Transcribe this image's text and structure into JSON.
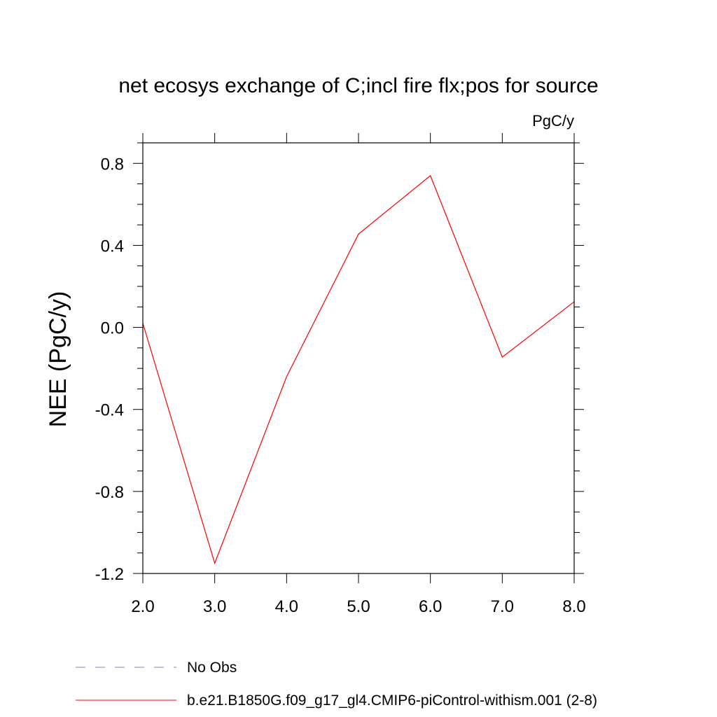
{
  "chart_data": {
    "type": "line",
    "title": "net ecosys exchange of C;incl fire flx;pos for source",
    "units_label": "PgC/y",
    "xlabel": "",
    "ylabel": "NEE  (PgC/y)",
    "xlim": [
      2.0,
      8.0
    ],
    "ylim": [
      -1.2,
      0.9
    ],
    "x_ticks": [
      "2.0",
      "3.0",
      "4.0",
      "5.0",
      "6.0",
      "7.0",
      "8.0"
    ],
    "y_ticks": [
      "0.8",
      "0.4",
      "0.0",
      "-0.4",
      "-0.8",
      "-1.2"
    ],
    "grid": false,
    "legend_position": "bottom",
    "series": [
      {
        "name": "No Obs",
        "color": "#8a7fc4",
        "dash": "dashed",
        "x": [],
        "y": []
      },
      {
        "name": "b.e21.B1850G.f09_g17_gl4.CMIP6-piControl-withism.001 (2-8)",
        "color": "#ff0000",
        "dash": "solid",
        "x": [
          2.0,
          3.0,
          4.0,
          5.0,
          6.0,
          7.0,
          8.0
        ],
        "y": [
          0.02,
          -1.15,
          -0.24,
          0.455,
          0.74,
          -0.145,
          0.125
        ]
      }
    ]
  }
}
